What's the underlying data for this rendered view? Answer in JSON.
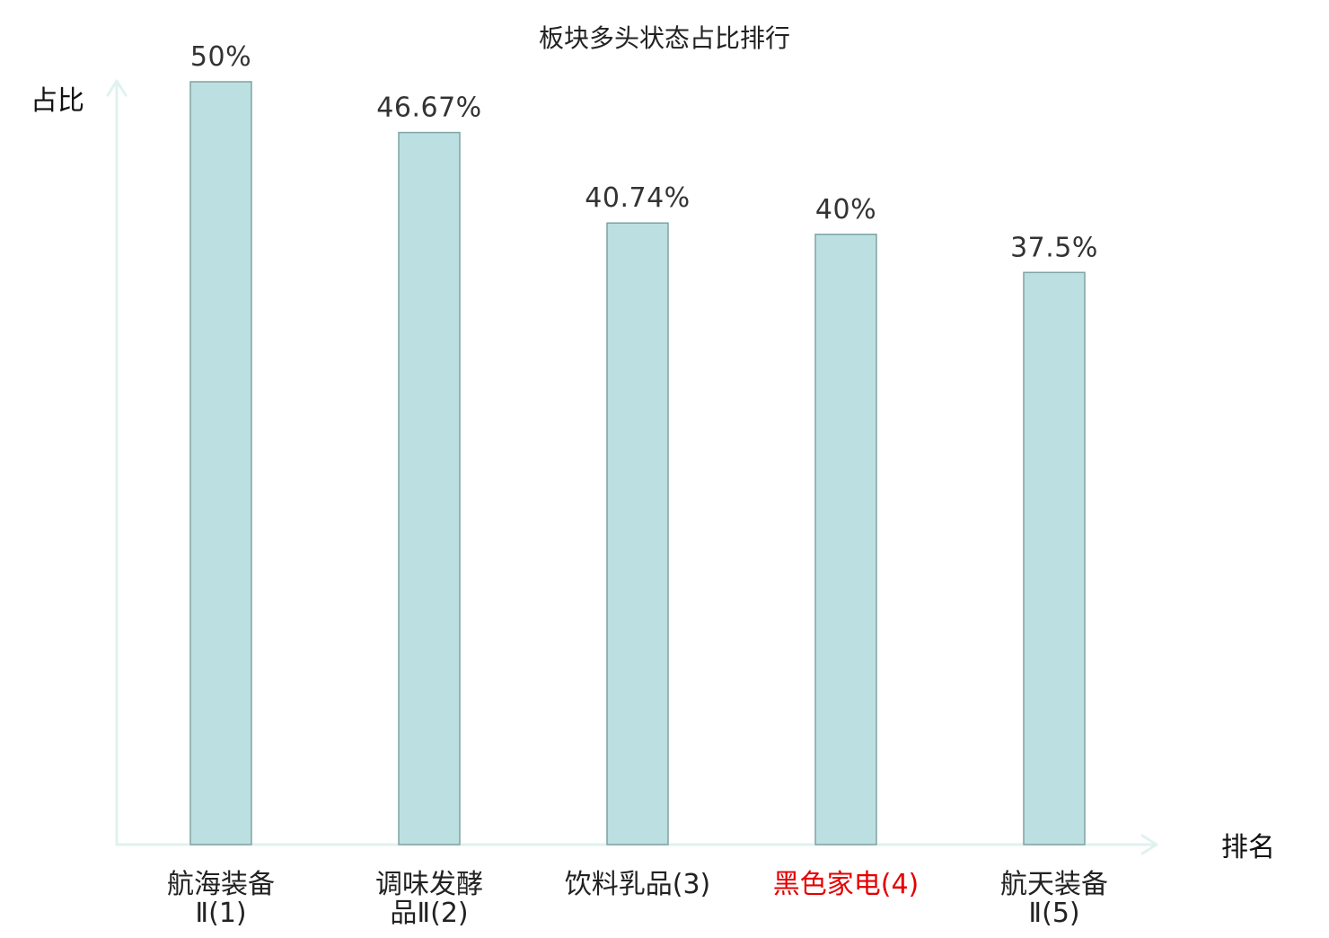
{
  "chart_data": {
    "type": "bar",
    "title": "板块多头状态占比排行",
    "ylabel": "占比",
    "xlabel": "排名",
    "ylim": [
      0,
      50
    ],
    "grid": false,
    "legend": "none",
    "categories": [
      {
        "lines": [
          "航海装备",
          "Ⅱ(1)"
        ],
        "highlight": false
      },
      {
        "lines": [
          "调味发酵",
          "品Ⅱ(2)"
        ],
        "highlight": false
      },
      {
        "lines": [
          "饮料乳品(3)"
        ],
        "highlight": false
      },
      {
        "lines": [
          "黑色家电(4)"
        ],
        "highlight": true
      },
      {
        "lines": [
          "航天装备",
          "Ⅱ(5)"
        ],
        "highlight": false
      }
    ],
    "values": [
      50,
      46.67,
      40.74,
      40,
      37.5
    ],
    "value_labels": [
      "50%",
      "46.67%",
      "40.74%",
      "40%",
      "37.5%"
    ]
  },
  "colors": {
    "bar_fill": "#bce0e1",
    "bar_stroke": "#7fa3a4",
    "axis": "#e0f2ef",
    "category_text": "#222222",
    "highlight_text": "#e60000"
  }
}
